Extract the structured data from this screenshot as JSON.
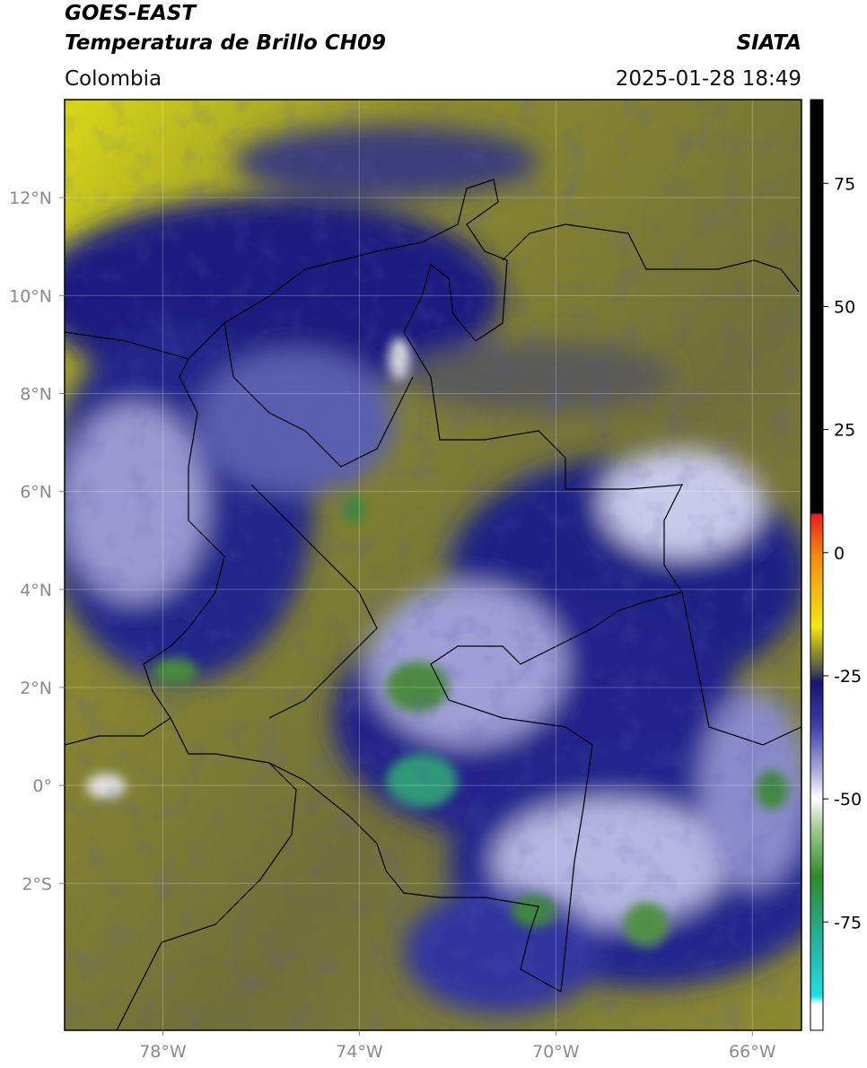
{
  "header": {
    "title_line1": "GOES-EAST",
    "title_line2": "Temperatura de Brillo CH09",
    "source": "SIATA",
    "region": "Colombia",
    "datetime": "2025-01-28 18:49"
  },
  "map": {
    "lonlim": [
      -80,
      -65
    ],
    "latlim": [
      -5,
      14
    ],
    "grid": true,
    "lon_ticks": [
      {
        "value": -78,
        "label": "78°W"
      },
      {
        "value": -74,
        "label": "74°W"
      },
      {
        "value": -70,
        "label": "70°W"
      },
      {
        "value": -66,
        "label": "66°W"
      }
    ],
    "lat_ticks": [
      {
        "value": 12,
        "label": "12°N"
      },
      {
        "value": 10,
        "label": "10°N"
      },
      {
        "value": 8,
        "label": "8°N"
      },
      {
        "value": 6,
        "label": "6°N"
      },
      {
        "value": 4,
        "label": "4°N"
      },
      {
        "value": 2,
        "label": "2°N"
      },
      {
        "value": 0,
        "label": "0°"
      },
      {
        "value": -2,
        "label": "2°S"
      }
    ]
  },
  "colorbar": {
    "lim": [
      -97,
      92
    ],
    "ticks": [
      75,
      50,
      25,
      0,
      -25,
      -50,
      -75
    ]
  }
}
